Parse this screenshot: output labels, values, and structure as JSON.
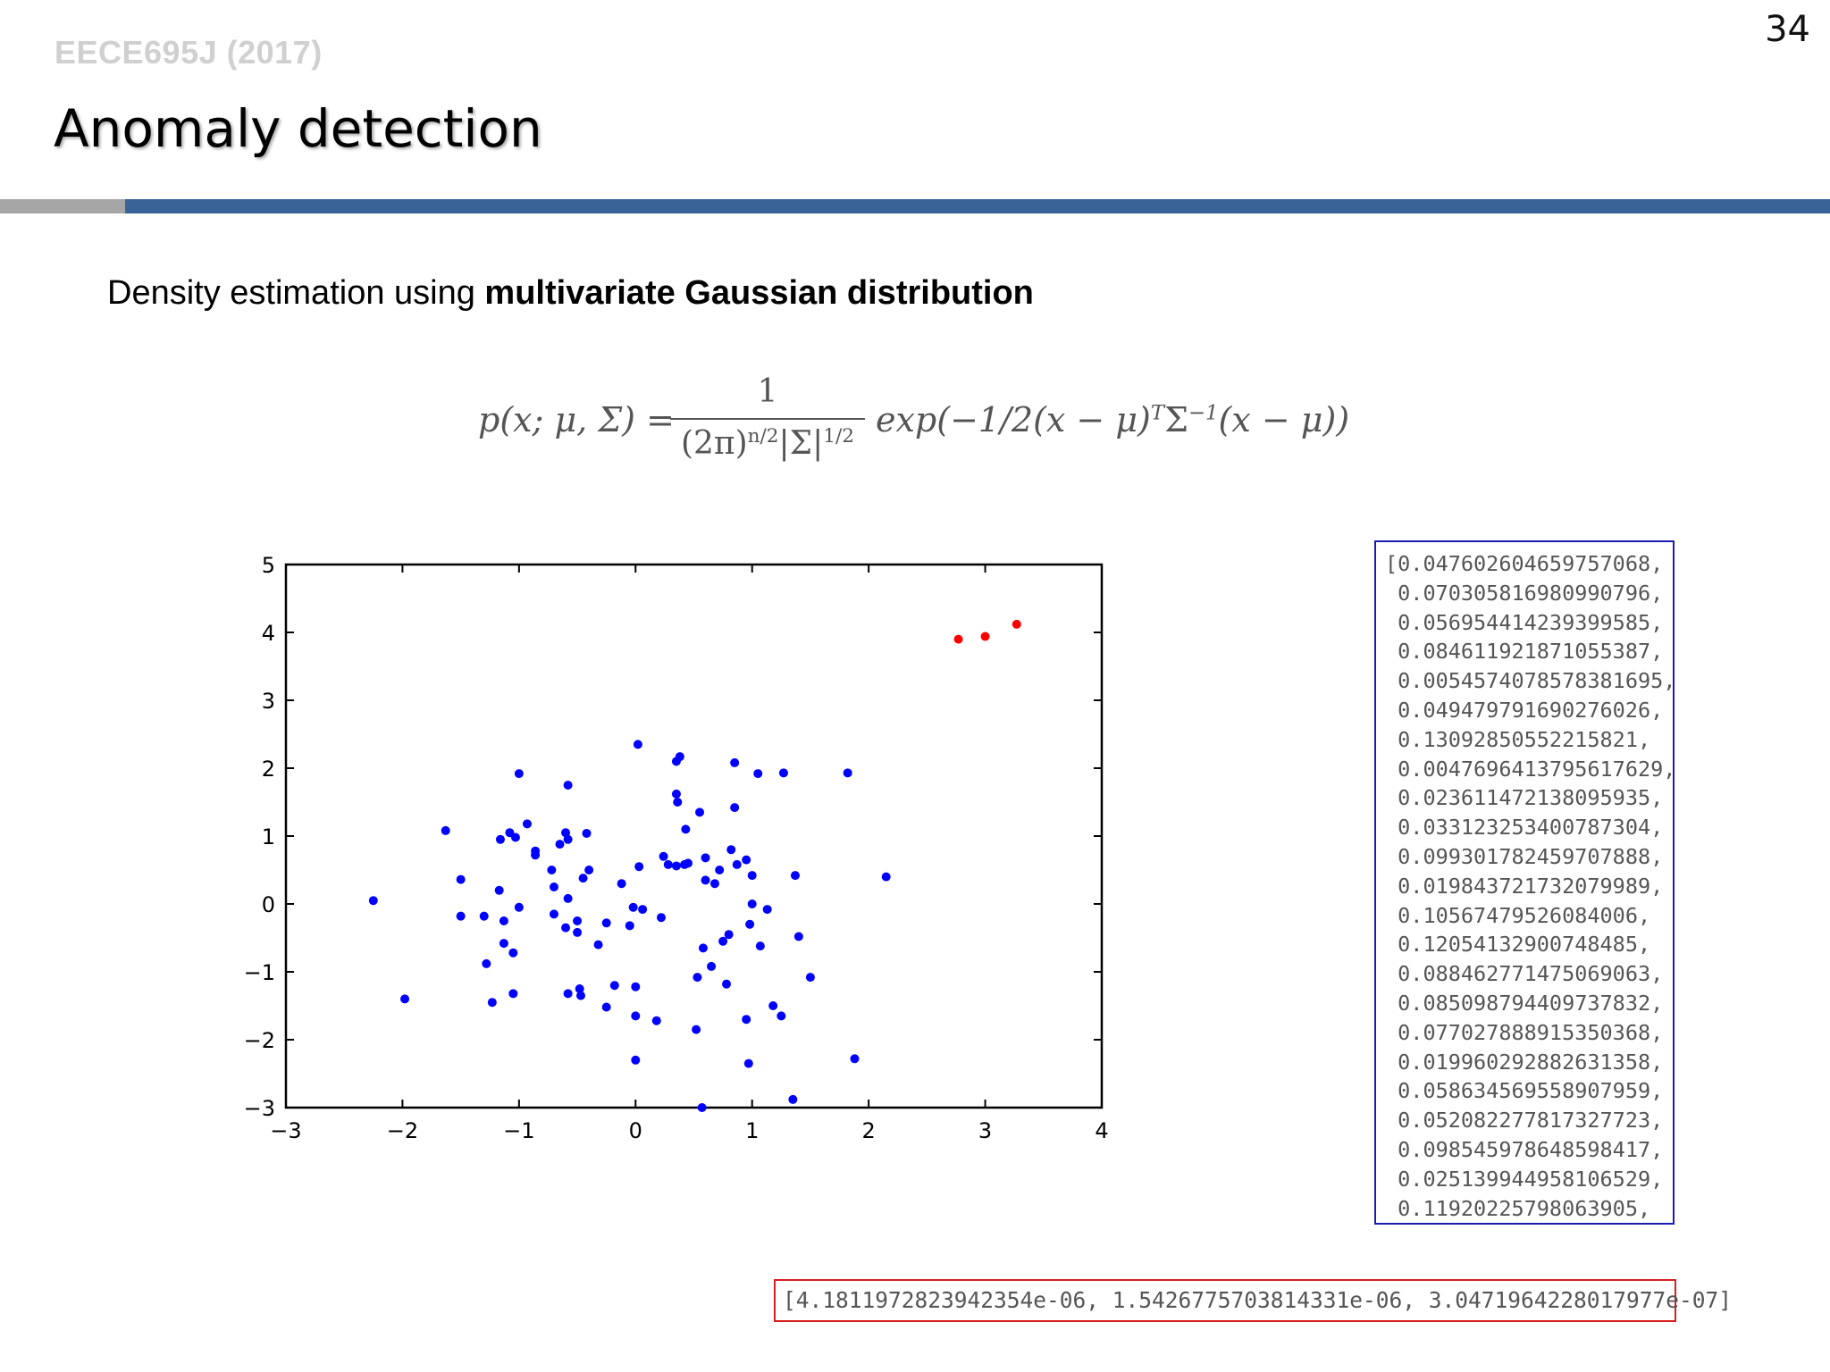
{
  "header": {
    "course": "EECE695J (2017)",
    "page_number": "34",
    "title": "Anomaly detection",
    "accent_gray": "#a6a6a6",
    "accent_blue": "#3a6398"
  },
  "subtitle": {
    "prefix": "Density estimation using ",
    "bold": "multivariate Gaussian distribution"
  },
  "formula": {
    "lhs": "p(x; μ, Σ) =",
    "numerator": "1",
    "den_a": "(2π)",
    "den_a_exp": "n/2",
    "den_b": "|Σ|",
    "den_b_exp": "1/2",
    "rhs_a": "exp(−1/2(x − μ)",
    "rhs_exp_t": "T",
    "rhs_b": "Σ",
    "rhs_exp_inv": "−1",
    "rhs_c": "(x − μ))"
  },
  "chart_data": {
    "type": "scatter",
    "xlim": [
      -3,
      4
    ],
    "ylim": [
      -3,
      5
    ],
    "x_ticks": [
      "−3",
      "−2",
      "−1",
      "0",
      "1",
      "2",
      "3",
      "4"
    ],
    "y_ticks": [
      "5",
      "4",
      "3",
      "2",
      "1",
      "0",
      "−1",
      "−2",
      "−3"
    ],
    "series": [
      {
        "color": "#0000ff",
        "points": [
          [
            -2.25,
            0.05
          ],
          [
            -1.98,
            -1.4
          ],
          [
            -1.63,
            1.08
          ],
          [
            -1.5,
            0.36
          ],
          [
            -1.5,
            -0.18
          ],
          [
            -1.3,
            -0.18
          ],
          [
            -1.28,
            -0.88
          ],
          [
            -1.23,
            -1.45
          ],
          [
            -1.17,
            0.2
          ],
          [
            -1.16,
            0.95
          ],
          [
            -1.13,
            -0.25
          ],
          [
            -1.13,
            -0.58
          ],
          [
            -1.08,
            1.05
          ],
          [
            -1.03,
            0.98
          ],
          [
            -1.05,
            -1.32
          ],
          [
            -1.05,
            -0.72
          ],
          [
            -1.0,
            1.92
          ],
          [
            -1.0,
            -0.05
          ],
          [
            -0.93,
            1.18
          ],
          [
            -0.86,
            0.78
          ],
          [
            -0.86,
            0.72
          ],
          [
            -0.72,
            0.5
          ],
          [
            -0.7,
            0.25
          ],
          [
            -0.7,
            -0.15
          ],
          [
            -0.65,
            0.88
          ],
          [
            -0.6,
            1.05
          ],
          [
            -0.6,
            -0.35
          ],
          [
            -0.58,
            1.75
          ],
          [
            -0.58,
            0.08
          ],
          [
            -0.58,
            0.95
          ],
          [
            -0.58,
            -1.32
          ],
          [
            -0.5,
            -0.25
          ],
          [
            -0.5,
            -0.42
          ],
          [
            -0.48,
            -1.25
          ],
          [
            -0.47,
            -1.35
          ],
          [
            -0.45,
            0.38
          ],
          [
            -0.42,
            1.04
          ],
          [
            -0.4,
            0.5
          ],
          [
            -0.32,
            -0.6
          ],
          [
            -0.25,
            -0.28
          ],
          [
            -0.25,
            -1.52
          ],
          [
            -0.18,
            -1.2
          ],
          [
            -0.12,
            0.3
          ],
          [
            -0.05,
            -0.32
          ],
          [
            -0.02,
            -0.05
          ],
          [
            0.0,
            -1.22
          ],
          [
            0.0,
            -1.65
          ],
          [
            0.0,
            -2.3
          ],
          [
            0.02,
            2.35
          ],
          [
            0.03,
            0.55
          ],
          [
            0.06,
            -0.08
          ],
          [
            0.18,
            -1.72
          ],
          [
            0.22,
            -0.2
          ],
          [
            0.24,
            0.7
          ],
          [
            0.28,
            0.58
          ],
          [
            0.35,
            2.1
          ],
          [
            0.35,
            0.56
          ],
          [
            0.35,
            1.62
          ],
          [
            0.36,
            1.5
          ],
          [
            0.38,
            2.17
          ],
          [
            0.42,
            0.58
          ],
          [
            0.43,
            1.1
          ],
          [
            0.45,
            0.6
          ],
          [
            0.52,
            -1.85
          ],
          [
            0.53,
            -1.08
          ],
          [
            0.55,
            1.35
          ],
          [
            0.57,
            -3.0
          ],
          [
            0.58,
            -0.65
          ],
          [
            0.6,
            0.68
          ],
          [
            0.6,
            0.35
          ],
          [
            0.65,
            -0.92
          ],
          [
            0.68,
            0.3
          ],
          [
            0.72,
            0.5
          ],
          [
            0.75,
            -0.55
          ],
          [
            0.78,
            -1.18
          ],
          [
            0.8,
            -0.45
          ],
          [
            0.82,
            0.8
          ],
          [
            0.85,
            2.08
          ],
          [
            0.85,
            1.42
          ],
          [
            0.87,
            0.58
          ],
          [
            0.95,
            0.65
          ],
          [
            0.95,
            -1.7
          ],
          [
            0.97,
            -2.35
          ],
          [
            0.98,
            -0.3
          ],
          [
            1.0,
            0.0
          ],
          [
            1.0,
            0.42
          ],
          [
            1.05,
            1.92
          ],
          [
            1.07,
            -0.62
          ],
          [
            1.13,
            -0.08
          ],
          [
            1.18,
            -1.5
          ],
          [
            1.25,
            -1.65
          ],
          [
            1.27,
            1.93
          ],
          [
            1.35,
            -2.88
          ],
          [
            1.37,
            0.42
          ],
          [
            1.4,
            -0.48
          ],
          [
            1.5,
            -1.08
          ],
          [
            1.82,
            1.93
          ],
          [
            1.88,
            -2.28
          ],
          [
            2.15,
            0.4
          ]
        ]
      },
      {
        "color": "#ff0000",
        "points": [
          [
            2.77,
            3.9
          ],
          [
            3.0,
            3.94
          ],
          [
            3.27,
            4.12
          ]
        ]
      }
    ]
  },
  "probabilities_normal": [
    "[0.047602604659757068,",
    " 0.070305816980990796,",
    " 0.056954414239399585,",
    " 0.084611921871055387,",
    " 0.0054574078578381695,",
    " 0.049479791690276026,",
    " 0.13092850552215821,",
    " 0.0047696413795617629,",
    " 0.023611472138095935,",
    " 0.033123253400787304,",
    " 0.099301782459707888,",
    " 0.019843721732079989,",
    " 0.10567479526084006,",
    " 0.12054132900748485,",
    " 0.088462771475069063,",
    " 0.085098794409737832,",
    " 0.077027888915350368,",
    " 0.019960292882631358,",
    " 0.058634569558907959,",
    " 0.052082277817327723,",
    " 0.098545978648598417,",
    " 0.025139944958106529,",
    " 0.11920225798063905,"
  ],
  "probabilities_anomaly": "[4.1811972823942354e-06, 1.5426775703814331e-06, 3.0471964228017977e-07]"
}
